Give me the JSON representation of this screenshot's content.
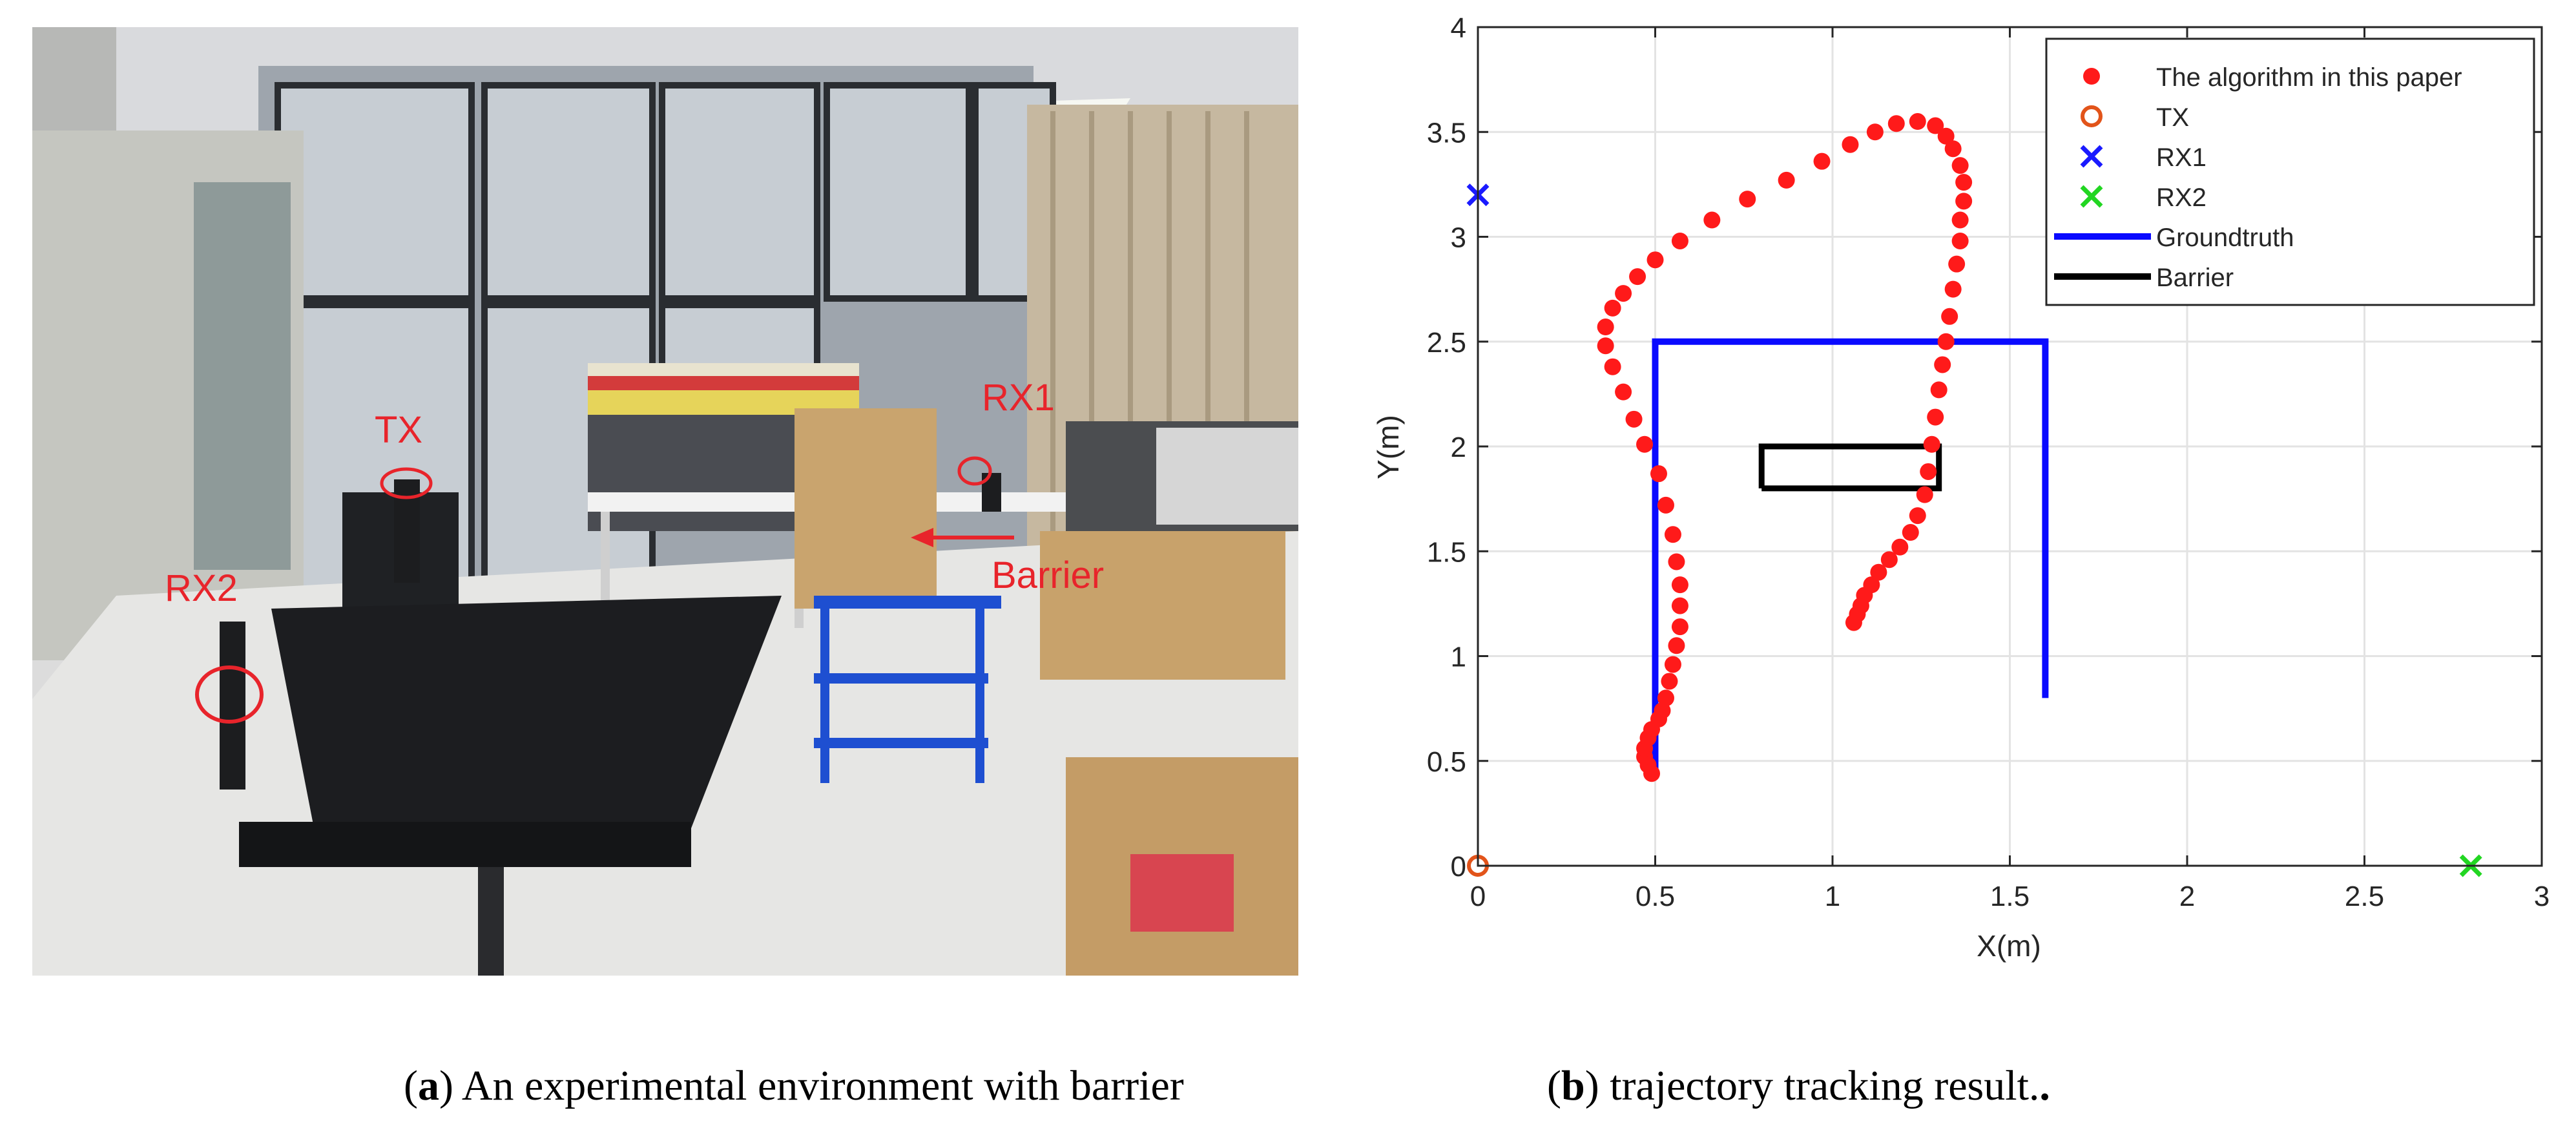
{
  "photo": {
    "labels": {
      "tx": "TX",
      "rx1": "RX1",
      "rx2": "RX2",
      "barrier": "Barrier"
    },
    "label_color": "#e8242b"
  },
  "captions": {
    "a_letter": "a",
    "a_text": "An experimental environment with barrier",
    "b_letter": "b",
    "b_text": "trajectory tracking result."
  },
  "chart_data": {
    "type": "scatter",
    "xlabel": "X(m)",
    "ylabel": "Y(m)",
    "xlim": [
      0,
      3
    ],
    "ylim": [
      0,
      4
    ],
    "xticks": [
      0,
      0.5,
      1,
      1.5,
      2,
      2.5,
      3
    ],
    "xtick_labels": [
      "0",
      "0.5",
      "1",
      "1.5",
      "2",
      "2.5",
      "3"
    ],
    "yticks": [
      0,
      0.5,
      1,
      1.5,
      2,
      2.5,
      3,
      3.5,
      4
    ],
    "ytick_labels": [
      "0",
      "0.5",
      "1",
      "1.5",
      "2",
      "2.5",
      "3",
      "3.5",
      "4"
    ],
    "grid": true,
    "legend_position": "top-right",
    "series": [
      {
        "name": "The algorithm in this paper",
        "marker": "dot",
        "color": "#ff1a1a",
        "points": [
          [
            0.49,
            0.44
          ],
          [
            0.48,
            0.48
          ],
          [
            0.47,
            0.52
          ],
          [
            0.47,
            0.56
          ],
          [
            0.48,
            0.61
          ],
          [
            0.49,
            0.65
          ],
          [
            0.51,
            0.7
          ],
          [
            0.52,
            0.74
          ],
          [
            0.53,
            0.8
          ],
          [
            0.54,
            0.88
          ],
          [
            0.55,
            0.96
          ],
          [
            0.56,
            1.05
          ],
          [
            0.57,
            1.14
          ],
          [
            0.57,
            1.24
          ],
          [
            0.57,
            1.34
          ],
          [
            0.56,
            1.45
          ],
          [
            0.55,
            1.58
          ],
          [
            0.53,
            1.72
          ],
          [
            0.51,
            1.87
          ],
          [
            0.47,
            2.01
          ],
          [
            0.44,
            2.13
          ],
          [
            0.41,
            2.26
          ],
          [
            0.38,
            2.38
          ],
          [
            0.36,
            2.48
          ],
          [
            0.36,
            2.57
          ],
          [
            0.38,
            2.66
          ],
          [
            0.41,
            2.73
          ],
          [
            0.45,
            2.81
          ],
          [
            0.5,
            2.89
          ],
          [
            0.57,
            2.98
          ],
          [
            0.66,
            3.08
          ],
          [
            0.76,
            3.18
          ],
          [
            0.87,
            3.27
          ],
          [
            0.97,
            3.36
          ],
          [
            1.05,
            3.44
          ],
          [
            1.12,
            3.5
          ],
          [
            1.18,
            3.54
          ],
          [
            1.24,
            3.55
          ],
          [
            1.29,
            3.53
          ],
          [
            1.32,
            3.48
          ],
          [
            1.34,
            3.42
          ],
          [
            1.36,
            3.34
          ],
          [
            1.37,
            3.26
          ],
          [
            1.37,
            3.17
          ],
          [
            1.36,
            3.08
          ],
          [
            1.36,
            2.98
          ],
          [
            1.35,
            2.87
          ],
          [
            1.34,
            2.75
          ],
          [
            1.33,
            2.62
          ],
          [
            1.32,
            2.5
          ],
          [
            1.31,
            2.39
          ],
          [
            1.3,
            2.27
          ],
          [
            1.29,
            2.14
          ],
          [
            1.28,
            2.01
          ],
          [
            1.27,
            1.88
          ],
          [
            1.26,
            1.77
          ],
          [
            1.24,
            1.67
          ],
          [
            1.22,
            1.59
          ],
          [
            1.19,
            1.52
          ],
          [
            1.16,
            1.46
          ],
          [
            1.13,
            1.4
          ],
          [
            1.11,
            1.34
          ],
          [
            1.09,
            1.29
          ],
          [
            1.08,
            1.24
          ],
          [
            1.07,
            1.2
          ],
          [
            1.06,
            1.16
          ]
        ]
      },
      {
        "name": "TX",
        "marker": "circle",
        "color": "#e2541a",
        "points": [
          [
            0,
            0
          ]
        ]
      },
      {
        "name": "RX1",
        "marker": "x",
        "color": "#1a1aff",
        "points": [
          [
            0,
            3.2
          ]
        ]
      },
      {
        "name": "RX2",
        "marker": "x",
        "color": "#22d622",
        "points": [
          [
            2.8,
            0
          ]
        ]
      },
      {
        "name": "Groundtruth",
        "marker": "line",
        "color": "#0a0aff",
        "points": [
          [
            0.5,
            0.43
          ],
          [
            0.5,
            2.5
          ],
          [
            1.6,
            2.5
          ],
          [
            1.6,
            0.8
          ]
        ]
      },
      {
        "name": "Barrier",
        "marker": "rect",
        "color": "#000000",
        "points": [
          [
            0.8,
            1.8
          ],
          [
            1.3,
            1.8
          ],
          [
            1.3,
            2.0
          ],
          [
            0.8,
            2.0
          ],
          [
            0.8,
            1.8
          ]
        ]
      }
    ]
  }
}
